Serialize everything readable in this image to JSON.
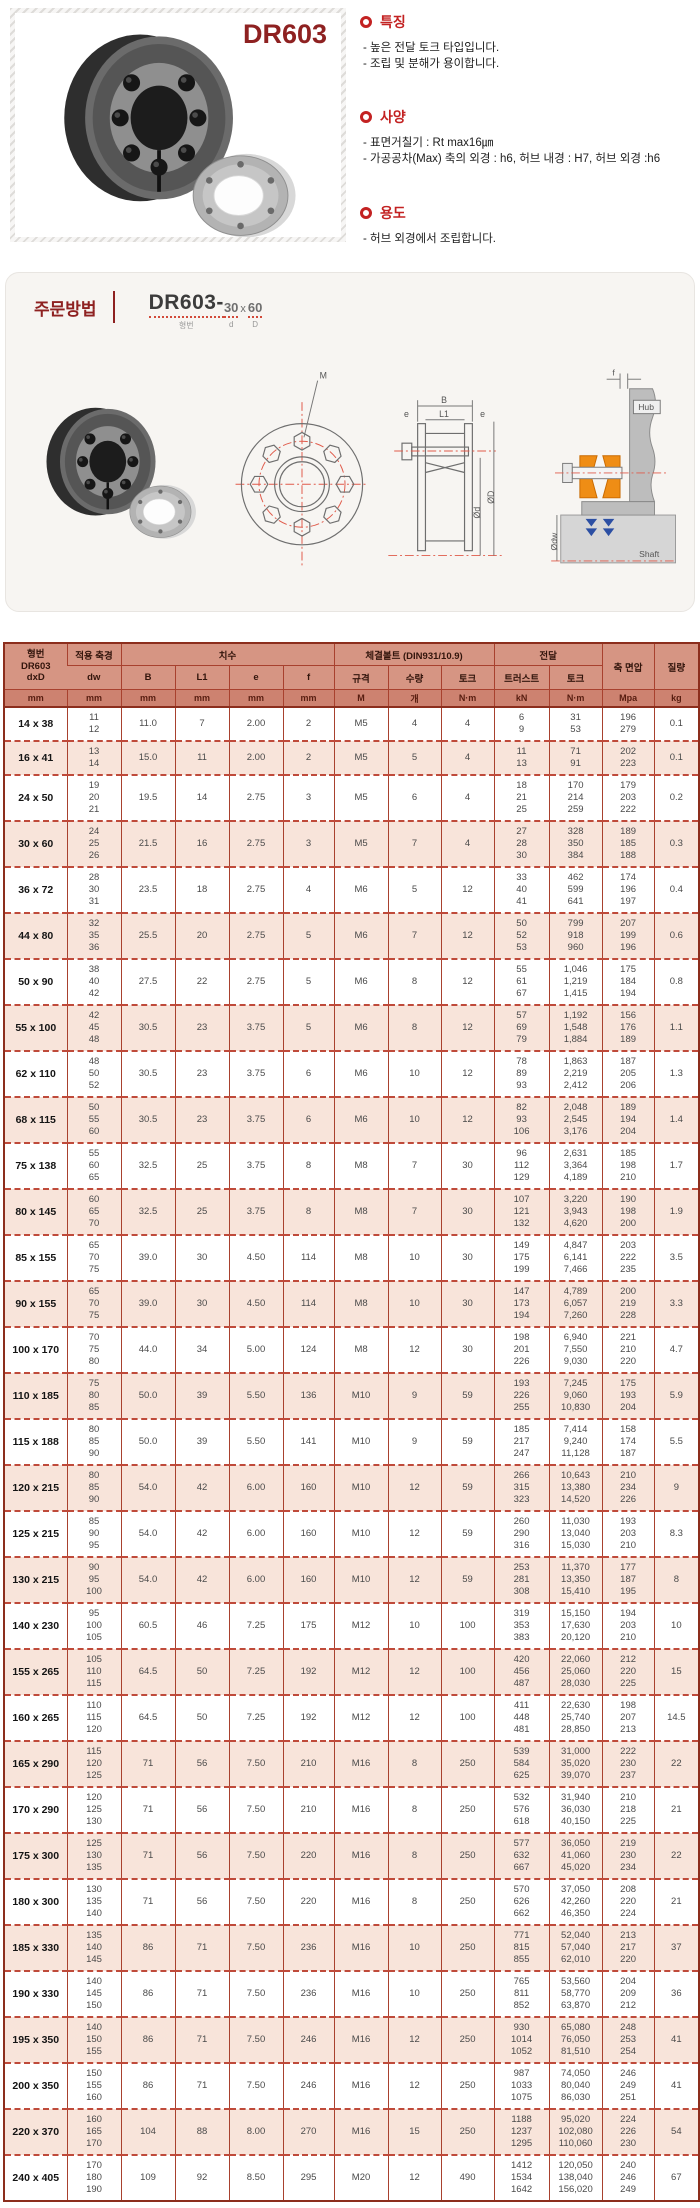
{
  "product": {
    "model": "DR603",
    "features": {
      "title": "특징",
      "items": [
        "- 높은 전달 토크 타입입니다.",
        "- 조립 및 분해가 용이합니다."
      ]
    },
    "specs": {
      "title": "사양",
      "items": [
        "- 표면거칠기 : Rt max16㎛",
        "- 가공공차(Max) 축의 외경 : h6, 허브 내경 : H7, 허브 외경 :h6"
      ]
    },
    "usage": {
      "title": "용도",
      "items": [
        "- 허브 외경에서 조립합니다."
      ]
    }
  },
  "order": {
    "title": "주문방법",
    "code_model": "DR603-",
    "code_d": "30",
    "code_x": "x",
    "code_D": "60",
    "label_model": "형번",
    "label_d": "d",
    "label_D": "D"
  },
  "diagram": {
    "m": "M",
    "b": "B",
    "l1": "L1",
    "e_left": "e",
    "e_right": "e",
    "od": "Ød",
    "oD": "ØD",
    "f": "f",
    "hub": "Hub",
    "odw": "Ødw",
    "shaft": "Shaft"
  },
  "colors": {
    "accent_red": "#c32222",
    "title_maroon": "#8e2121",
    "table_border": "#8c2e1d",
    "header_bg": "#d69583",
    "unit_row_bg": "#cd8270",
    "row_alt_bg": "#f8e4da",
    "drawing_orange": "#ef8d15",
    "arrow_blue": "#2c4fa3"
  },
  "table": {
    "header": {
      "col1": "형번\nDR603\ndxD",
      "col2_group": "적용 축경",
      "dw": "dw",
      "dims_group": "치수",
      "dims": [
        "B",
        "L1",
        "e",
        "f"
      ],
      "bolt_group": "체결볼트 (DIN931/10.9)",
      "bolt_cols": [
        "규격",
        "수량",
        "토크"
      ],
      "trans_group": "전달",
      "trans_cols": [
        "트러스트",
        "토크"
      ],
      "pressure": "축 면압",
      "mass": "질량",
      "units": [
        "mm",
        "mm",
        "mm",
        "mm",
        "mm",
        "mm",
        "M",
        "개",
        "N·m",
        "kN",
        "N·m",
        "Mpa",
        "kg"
      ]
    },
    "rows": [
      {
        "size": "14 x 38",
        "dw": [
          "11",
          "12"
        ],
        "B": "11.0",
        "L1": "7",
        "e": "2.00",
        "f": "2",
        "bolt": "M5",
        "qty": "4",
        "bolt_torque": "4",
        "thrust": [
          "6",
          "9"
        ],
        "torque": [
          "31",
          "53"
        ],
        "pressure": [
          "196",
          "279"
        ],
        "mass": "0.1"
      },
      {
        "size": "16 x 41",
        "dw": [
          "13",
          "14"
        ],
        "B": "15.0",
        "L1": "11",
        "e": "2.00",
        "f": "2",
        "bolt": "M5",
        "qty": "5",
        "bolt_torque": "4",
        "thrust": [
          "11",
          "13"
        ],
        "torque": [
          "71",
          "91"
        ],
        "pressure": [
          "202",
          "223"
        ],
        "mass": "0.1"
      },
      {
        "size": "24 x 50",
        "dw": [
          "19",
          "20",
          "21"
        ],
        "B": "19.5",
        "L1": "14",
        "e": "2.75",
        "f": "3",
        "bolt": "M5",
        "qty": "6",
        "bolt_torque": "4",
        "thrust": [
          "18",
          "21",
          "25"
        ],
        "torque": [
          "170",
          "214",
          "259"
        ],
        "pressure": [
          "179",
          "203",
          "222"
        ],
        "mass": "0.2"
      },
      {
        "size": "30 x 60",
        "dw": [
          "24",
          "25",
          "26"
        ],
        "B": "21.5",
        "L1": "16",
        "e": "2.75",
        "f": "3",
        "bolt": "M5",
        "qty": "7",
        "bolt_torque": "4",
        "thrust": [
          "27",
          "28",
          "30"
        ],
        "torque": [
          "328",
          "350",
          "384"
        ],
        "pressure": [
          "189",
          "185",
          "188"
        ],
        "mass": "0.3"
      },
      {
        "size": "36 x 72",
        "dw": [
          "28",
          "30",
          "31"
        ],
        "B": "23.5",
        "L1": "18",
        "e": "2.75",
        "f": "4",
        "bolt": "M6",
        "qty": "5",
        "bolt_torque": "12",
        "thrust": [
          "33",
          "40",
          "41"
        ],
        "torque": [
          "462",
          "599",
          "641"
        ],
        "pressure": [
          "174",
          "196",
          "197"
        ],
        "mass": "0.4"
      },
      {
        "size": "44 x 80",
        "dw": [
          "32",
          "35",
          "36"
        ],
        "B": "25.5",
        "L1": "20",
        "e": "2.75",
        "f": "5",
        "bolt": "M6",
        "qty": "7",
        "bolt_torque": "12",
        "thrust": [
          "50",
          "52",
          "53"
        ],
        "torque": [
          "799",
          "918",
          "960"
        ],
        "pressure": [
          "207",
          "199",
          "196"
        ],
        "mass": "0.6"
      },
      {
        "size": "50 x 90",
        "dw": [
          "38",
          "40",
          "42"
        ],
        "B": "27.5",
        "L1": "22",
        "e": "2.75",
        "f": "5",
        "bolt": "M6",
        "qty": "8",
        "bolt_torque": "12",
        "thrust": [
          "55",
          "61",
          "67"
        ],
        "torque": [
          "1,046",
          "1,219",
          "1,415"
        ],
        "pressure": [
          "175",
          "184",
          "194"
        ],
        "mass": "0.8"
      },
      {
        "size": "55 x 100",
        "dw": [
          "42",
          "45",
          "48"
        ],
        "B": "30.5",
        "L1": "23",
        "e": "3.75",
        "f": "5",
        "bolt": "M6",
        "qty": "8",
        "bolt_torque": "12",
        "thrust": [
          "57",
          "69",
          "79"
        ],
        "torque": [
          "1,192",
          "1,548",
          "1,884"
        ],
        "pressure": [
          "156",
          "176",
          "189"
        ],
        "mass": "1.1"
      },
      {
        "size": "62 x 110",
        "dw": [
          "48",
          "50",
          "52"
        ],
        "B": "30.5",
        "L1": "23",
        "e": "3.75",
        "f": "6",
        "bolt": "M6",
        "qty": "10",
        "bolt_torque": "12",
        "thrust": [
          "78",
          "89",
          "93"
        ],
        "torque": [
          "1,863",
          "2,219",
          "2,412"
        ],
        "pressure": [
          "187",
          "205",
          "206"
        ],
        "mass": "1.3"
      },
      {
        "size": "68 x 115",
        "dw": [
          "50",
          "55",
          "60"
        ],
        "B": "30.5",
        "L1": "23",
        "e": "3.75",
        "f": "6",
        "bolt": "M6",
        "qty": "10",
        "bolt_torque": "12",
        "thrust": [
          "82",
          "93",
          "106"
        ],
        "torque": [
          "2,048",
          "2,545",
          "3,176"
        ],
        "pressure": [
          "189",
          "194",
          "204"
        ],
        "mass": "1.4"
      },
      {
        "size": "75 x 138",
        "dw": [
          "55",
          "60",
          "65"
        ],
        "B": "32.5",
        "L1": "25",
        "e": "3.75",
        "f": "8",
        "bolt": "M8",
        "qty": "7",
        "bolt_torque": "30",
        "thrust": [
          "96",
          "112",
          "129"
        ],
        "torque": [
          "2,631",
          "3,364",
          "4,189"
        ],
        "pressure": [
          "185",
          "198",
          "210"
        ],
        "mass": "1.7"
      },
      {
        "size": "80 x 145",
        "dw": [
          "60",
          "65",
          "70"
        ],
        "B": "32.5",
        "L1": "25",
        "e": "3.75",
        "f": "8",
        "bolt": "M8",
        "qty": "7",
        "bolt_torque": "30",
        "thrust": [
          "107",
          "121",
          "132"
        ],
        "torque": [
          "3,220",
          "3,943",
          "4,620"
        ],
        "pressure": [
          "190",
          "198",
          "200"
        ],
        "mass": "1.9"
      },
      {
        "size": "85 x 155",
        "dw": [
          "65",
          "70",
          "75"
        ],
        "B": "39.0",
        "L1": "30",
        "e": "4.50",
        "f": "114",
        "bolt": "M8",
        "qty": "10",
        "bolt_torque": "30",
        "thrust": [
          "149",
          "175",
          "199"
        ],
        "torque": [
          "4,847",
          "6,141",
          "7,466"
        ],
        "pressure": [
          "203",
          "222",
          "235"
        ],
        "mass": "3.5"
      },
      {
        "size": "90 x 155",
        "dw": [
          "65",
          "70",
          "75"
        ],
        "B": "39.0",
        "L1": "30",
        "e": "4.50",
        "f": "114",
        "bolt": "M8",
        "qty": "10",
        "bolt_torque": "30",
        "thrust": [
          "147",
          "173",
          "194"
        ],
        "torque": [
          "4,789",
          "6,057",
          "7,260"
        ],
        "pressure": [
          "200",
          "219",
          "228"
        ],
        "mass": "3.3"
      },
      {
        "size": "100 x 170",
        "dw": [
          "70",
          "75",
          "80"
        ],
        "B": "44.0",
        "L1": "34",
        "e": "5.00",
        "f": "124",
        "bolt": "M8",
        "qty": "12",
        "bolt_torque": "30",
        "thrust": [
          "198",
          "201",
          "226"
        ],
        "torque": [
          "6,940",
          "7,550",
          "9,030"
        ],
        "pressure": [
          "221",
          "210",
          "220"
        ],
        "mass": "4.7"
      },
      {
        "size": "110 x 185",
        "dw": [
          "75",
          "80",
          "85"
        ],
        "B": "50.0",
        "L1": "39",
        "e": "5.50",
        "f": "136",
        "bolt": "M10",
        "qty": "9",
        "bolt_torque": "59",
        "thrust": [
          "193",
          "226",
          "255"
        ],
        "torque": [
          "7,245",
          "9,060",
          "10,830"
        ],
        "pressure": [
          "175",
          "193",
          "204"
        ],
        "mass": "5.9"
      },
      {
        "size": "115 x 188",
        "dw": [
          "80",
          "85",
          "90"
        ],
        "B": "50.0",
        "L1": "39",
        "e": "5.50",
        "f": "141",
        "bolt": "M10",
        "qty": "9",
        "bolt_torque": "59",
        "thrust": [
          "185",
          "217",
          "247"
        ],
        "torque": [
          "7,414",
          "9,240",
          "11,128"
        ],
        "pressure": [
          "158",
          "174",
          "187"
        ],
        "mass": "5.5"
      },
      {
        "size": "120 x 215",
        "dw": [
          "80",
          "85",
          "90"
        ],
        "B": "54.0",
        "L1": "42",
        "e": "6.00",
        "f": "160",
        "bolt": "M10",
        "qty": "12",
        "bolt_torque": "59",
        "thrust": [
          "266",
          "315",
          "323"
        ],
        "torque": [
          "10,643",
          "13,380",
          "14,520"
        ],
        "pressure": [
          "210",
          "234",
          "226"
        ],
        "mass": "9"
      },
      {
        "size": "125 x 215",
        "dw": [
          "85",
          "90",
          "95"
        ],
        "B": "54.0",
        "L1": "42",
        "e": "6.00",
        "f": "160",
        "bolt": "M10",
        "qty": "12",
        "bolt_torque": "59",
        "thrust": [
          "260",
          "290",
          "316"
        ],
        "torque": [
          "11,030",
          "13,040",
          "15,030"
        ],
        "pressure": [
          "193",
          "203",
          "210"
        ],
        "mass": "8.3"
      },
      {
        "size": "130 x 215",
        "dw": [
          "90",
          "95",
          "100"
        ],
        "B": "54.0",
        "L1": "42",
        "e": "6.00",
        "f": "160",
        "bolt": "M10",
        "qty": "12",
        "bolt_torque": "59",
        "thrust": [
          "253",
          "281",
          "308"
        ],
        "torque": [
          "11,370",
          "13,350",
          "15,410"
        ],
        "pressure": [
          "177",
          "187",
          "195"
        ],
        "mass": "8"
      },
      {
        "size": "140 x 230",
        "dw": [
          "95",
          "100",
          "105"
        ],
        "B": "60.5",
        "L1": "46",
        "e": "7.25",
        "f": "175",
        "bolt": "M12",
        "qty": "10",
        "bolt_torque": "100",
        "thrust": [
          "319",
          "353",
          "383"
        ],
        "torque": [
          "15,150",
          "17,630",
          "20,120"
        ],
        "pressure": [
          "194",
          "203",
          "210"
        ],
        "mass": "10"
      },
      {
        "size": "155 x 265",
        "dw": [
          "105",
          "110",
          "115"
        ],
        "B": "64.5",
        "L1": "50",
        "e": "7.25",
        "f": "192",
        "bolt": "M12",
        "qty": "12",
        "bolt_torque": "100",
        "thrust": [
          "420",
          "456",
          "487"
        ],
        "torque": [
          "22,060",
          "25,060",
          "28,030"
        ],
        "pressure": [
          "212",
          "220",
          "225"
        ],
        "mass": "15"
      },
      {
        "size": "160 x 265",
        "dw": [
          "110",
          "115",
          "120"
        ],
        "B": "64.5",
        "L1": "50",
        "e": "7.25",
        "f": "192",
        "bolt": "M12",
        "qty": "12",
        "bolt_torque": "100",
        "thrust": [
          "411",
          "448",
          "481"
        ],
        "torque": [
          "22,630",
          "25,740",
          "28,850"
        ],
        "pressure": [
          "198",
          "207",
          "213"
        ],
        "mass": "14.5"
      },
      {
        "size": "165 x 290",
        "dw": [
          "115",
          "120",
          "125"
        ],
        "B": "71",
        "L1": "56",
        "e": "7.50",
        "f": "210",
        "bolt": "M16",
        "qty": "8",
        "bolt_torque": "250",
        "thrust": [
          "539",
          "584",
          "625"
        ],
        "torque": [
          "31,000",
          "35,020",
          "39,070"
        ],
        "pressure": [
          "222",
          "230",
          "237"
        ],
        "mass": "22"
      },
      {
        "size": "170 x 290",
        "dw": [
          "120",
          "125",
          "130"
        ],
        "B": "71",
        "L1": "56",
        "e": "7.50",
        "f": "210",
        "bolt": "M16",
        "qty": "8",
        "bolt_torque": "250",
        "thrust": [
          "532",
          "576",
          "618"
        ],
        "torque": [
          "31,940",
          "36,030",
          "40,150"
        ],
        "pressure": [
          "210",
          "218",
          "225"
        ],
        "mass": "21"
      },
      {
        "size": "175 x 300",
        "dw": [
          "125",
          "130",
          "135"
        ],
        "B": "71",
        "L1": "56",
        "e": "7.50",
        "f": "220",
        "bolt": "M16",
        "qty": "8",
        "bolt_torque": "250",
        "thrust": [
          "577",
          "632",
          "667"
        ],
        "torque": [
          "36,050",
          "41,060",
          "45,020"
        ],
        "pressure": [
          "219",
          "230",
          "234"
        ],
        "mass": "22"
      },
      {
        "size": "180 x 300",
        "dw": [
          "130",
          "135",
          "140"
        ],
        "B": "71",
        "L1": "56",
        "e": "7.50",
        "f": "220",
        "bolt": "M16",
        "qty": "8",
        "bolt_torque": "250",
        "thrust": [
          "570",
          "626",
          "662"
        ],
        "torque": [
          "37,050",
          "42,260",
          "46,350"
        ],
        "pressure": [
          "208",
          "220",
          "224"
        ],
        "mass": "21"
      },
      {
        "size": "185 x 330",
        "dw": [
          "135",
          "140",
          "145"
        ],
        "B": "86",
        "L1": "71",
        "e": "7.50",
        "f": "236",
        "bolt": "M16",
        "qty": "10",
        "bolt_torque": "250",
        "thrust": [
          "771",
          "815",
          "855"
        ],
        "torque": [
          "52,040",
          "57,040",
          "62,010"
        ],
        "pressure": [
          "213",
          "217",
          "220"
        ],
        "mass": "37"
      },
      {
        "size": "190 x 330",
        "dw": [
          "140",
          "145",
          "150"
        ],
        "B": "86",
        "L1": "71",
        "e": "7.50",
        "f": "236",
        "bolt": "M16",
        "qty": "10",
        "bolt_torque": "250",
        "thrust": [
          "765",
          "811",
          "852"
        ],
        "torque": [
          "53,560",
          "58,770",
          "63,870"
        ],
        "pressure": [
          "204",
          "209",
          "212"
        ],
        "mass": "36"
      },
      {
        "size": "195 x 350",
        "dw": [
          "140",
          "150",
          "155"
        ],
        "B": "86",
        "L1": "71",
        "e": "7.50",
        "f": "246",
        "bolt": "M16",
        "qty": "12",
        "bolt_torque": "250",
        "thrust": [
          "930",
          "1014",
          "1052"
        ],
        "torque": [
          "65,080",
          "76,050",
          "81,510"
        ],
        "pressure": [
          "248",
          "253",
          "254"
        ],
        "mass": "41"
      },
      {
        "size": "200 x 350",
        "dw": [
          "150",
          "155",
          "160"
        ],
        "B": "86",
        "L1": "71",
        "e": "7.50",
        "f": "246",
        "bolt": "M16",
        "qty": "12",
        "bolt_torque": "250",
        "thrust": [
          "987",
          "1033",
          "1075"
        ],
        "torque": [
          "74,050",
          "80,040",
          "86,030"
        ],
        "pressure": [
          "246",
          "249",
          "251"
        ],
        "mass": "41"
      },
      {
        "size": "220 x 370",
        "dw": [
          "160",
          "165",
          "170"
        ],
        "B": "104",
        "L1": "88",
        "e": "8.00",
        "f": "270",
        "bolt": "M16",
        "qty": "15",
        "bolt_torque": "250",
        "thrust": [
          "1188",
          "1237",
          "1295"
        ],
        "torque": [
          "95,020",
          "102,080",
          "110,060"
        ],
        "pressure": [
          "224",
          "226",
          "230"
        ],
        "mass": "54"
      },
      {
        "size": "240 x 405",
        "dw": [
          "170",
          "180",
          "190"
        ],
        "B": "109",
        "L1": "92",
        "e": "8.50",
        "f": "295",
        "bolt": "M20",
        "qty": "12",
        "bolt_torque": "490",
        "thrust": [
          "1412",
          "1534",
          "1642"
        ],
        "torque": [
          "120,050",
          "138,040",
          "156,020"
        ],
        "pressure": [
          "240",
          "246",
          "249"
        ],
        "mass": "67"
      }
    ]
  }
}
